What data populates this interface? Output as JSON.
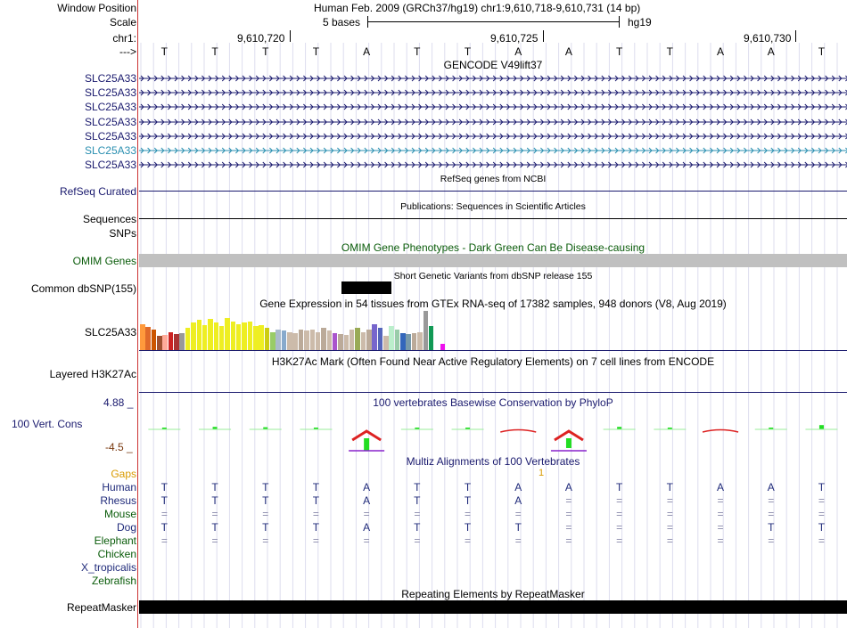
{
  "header": {
    "window_position_label": "Window Position",
    "window_position_value": "Human Feb. 2009 (GRCh37/hg19)   chr1:9,610,718-9,610,731 (14 bp)",
    "scale_label": "Scale",
    "scale_bases": "5 bases",
    "scale_assembly": "hg19",
    "chrom_label": "chr1:",
    "strand_label": "--->",
    "coord_ticks": [
      "9,610,720",
      "9,610,725",
      "9,610,730"
    ]
  },
  "bases": [
    "T",
    "T",
    "T",
    "T",
    "A",
    "T",
    "T",
    "A",
    "A",
    "T",
    "T",
    "A",
    "A",
    "T"
  ],
  "gencode": {
    "title": "GENCODE V49lift37",
    "transcripts": [
      "SLC25A33",
      "SLC25A33",
      "SLC25A33",
      "SLC25A33",
      "SLC25A33",
      "SLC25A33",
      "SLC25A33"
    ]
  },
  "refseq": {
    "label": "RefSeq Curated",
    "title": "RefSeq genes from NCBI"
  },
  "sequences": {
    "label": "Sequences",
    "title": "Publications: Sequences in Scientific Articles"
  },
  "snps": {
    "label": "SNPs"
  },
  "omim": {
    "title": "OMIM Gene Phenotypes - Dark Green Can Be Disease-causing",
    "label": "OMIM Genes"
  },
  "dbsnp": {
    "title": "Short Genetic Variants from dbSNP release 155",
    "label": "Common dbSNP(155)"
  },
  "gtex": {
    "title": "Gene Expression in 54 tissues from GTEx RNA-seq of 17382 samples, 948 donors (V8, Aug 2019)",
    "label": "SLC25A33",
    "bars": [
      {
        "h": 0.65,
        "c": "#ff9a3c"
      },
      {
        "h": 0.58,
        "c": "#e06a2a"
      },
      {
        "h": 0.5,
        "c": "#cc5500"
      },
      {
        "h": 0.35,
        "c": "#a05030"
      },
      {
        "h": 0.38,
        "c": "#ffaa99"
      },
      {
        "h": 0.45,
        "c": "#cc2222"
      },
      {
        "h": 0.4,
        "c": "#aa3333"
      },
      {
        "h": 0.42,
        "c": "#999999"
      },
      {
        "h": 0.55,
        "c": "#eeee22"
      },
      {
        "h": 0.7,
        "c": "#eeee22"
      },
      {
        "h": 0.75,
        "c": "#eeee22"
      },
      {
        "h": 0.62,
        "c": "#eeee22"
      },
      {
        "h": 0.78,
        "c": "#eeee22"
      },
      {
        "h": 0.68,
        "c": "#eeee22"
      },
      {
        "h": 0.6,
        "c": "#eeee22"
      },
      {
        "h": 0.8,
        "c": "#eeee22"
      },
      {
        "h": 0.72,
        "c": "#eeee22"
      },
      {
        "h": 0.65,
        "c": "#eeee22"
      },
      {
        "h": 0.7,
        "c": "#eeee22"
      },
      {
        "h": 0.72,
        "c": "#eeee22"
      },
      {
        "h": 0.6,
        "c": "#eeee22"
      },
      {
        "h": 0.62,
        "c": "#eeee22"
      },
      {
        "h": 0.55,
        "c": "#cccc11"
      },
      {
        "h": 0.45,
        "c": "#99cc66"
      },
      {
        "h": 0.52,
        "c": "#aabbcc"
      },
      {
        "h": 0.48,
        "c": "#88aacc"
      },
      {
        "h": 0.45,
        "c": "#ccbbaa"
      },
      {
        "h": 0.42,
        "c": "#ccbbaa"
      },
      {
        "h": 0.5,
        "c": "#bbaa99"
      },
      {
        "h": 0.48,
        "c": "#ccbbaa"
      },
      {
        "h": 0.5,
        "c": "#ccbbaa"
      },
      {
        "h": 0.45,
        "c": "#ccbbaa"
      },
      {
        "h": 0.55,
        "c": "#bbaa99"
      },
      {
        "h": 0.48,
        "c": "#ccbbaa"
      },
      {
        "h": 0.42,
        "c": "#aa55cc"
      },
      {
        "h": 0.4,
        "c": "#bbaa99"
      },
      {
        "h": 0.38,
        "c": "#ccbbaa"
      },
      {
        "h": 0.5,
        "c": "#ccbbaa"
      },
      {
        "h": 0.55,
        "c": "#99aa55"
      },
      {
        "h": 0.45,
        "c": "#ccbbaa"
      },
      {
        "h": 0.5,
        "c": "#bbaa99"
      },
      {
        "h": 0.65,
        "c": "#7766cc"
      },
      {
        "h": 0.55,
        "c": "#5566bb"
      },
      {
        "h": 0.35,
        "c": "#ccbbaa"
      },
      {
        "h": 0.6,
        "c": "#bbeecc"
      },
      {
        "h": 0.52,
        "c": "#99ccaa"
      },
      {
        "h": 0.42,
        "c": "#3366bb"
      },
      {
        "h": 0.4,
        "c": "#7799aa"
      },
      {
        "h": 0.42,
        "c": "#bbaa99"
      },
      {
        "h": 0.45,
        "c": "#ccbbaa"
      },
      {
        "h": 0.98,
        "c": "#999999"
      },
      {
        "h": 0.6,
        "c": "#119955"
      },
      {
        "h": 0.45,
        "c": "#ffffff"
      },
      {
        "h": 0.15,
        "c": "#ee11ee"
      }
    ]
  },
  "h3k27ac": {
    "title": "H3K27Ac Mark (Often Found Near Active Regulatory Elements) on 7 cell lines from ENCODE",
    "label": "Layered H3K27Ac"
  },
  "phylop": {
    "title": "100 vertebrates Basewise Conservation by PhyloP",
    "label": "100 Vert. Cons",
    "max_label": "4.88 _",
    "min_label": "-4.5 _",
    "scores": [
      0.2,
      0.35,
      0.3,
      0.2,
      -2.8,
      0,
      0,
      -0.3,
      -2.2,
      0.35,
      0.1,
      -0.8,
      0,
      0.6
    ]
  },
  "multiz": {
    "title": "Multiz Alignments of 100 Vertebrates",
    "gaps_label": "Gaps",
    "gap_marker": "1",
    "species": [
      {
        "name": "Human",
        "color": "#1f2a7a",
        "row": [
          "T",
          "T",
          "T",
          "T",
          "A",
          "T",
          "T",
          "A",
          "A",
          "T",
          "T",
          "A",
          "A",
          "T"
        ]
      },
      {
        "name": "Rhesus",
        "color": "#1f2a7a",
        "row": [
          "T",
          "T",
          "T",
          "T",
          "A",
          "T",
          "T",
          "A",
          "=",
          "=",
          "=",
          "=",
          "=",
          "="
        ]
      },
      {
        "name": "Mouse",
        "color": "#0a5c0a",
        "row": [
          "=",
          "=",
          "=",
          "=",
          "=",
          "=",
          "=",
          "=",
          "=",
          "=",
          "=",
          "=",
          "=",
          "="
        ]
      },
      {
        "name": "Dog",
        "color": "#1f2a7a",
        "row": [
          "T",
          "T",
          "T",
          "T",
          "A",
          "T",
          "T",
          "T",
          "=",
          "=",
          "=",
          "=",
          "T",
          "T"
        ]
      },
      {
        "name": "Elephant",
        "color": "#0a5c0a",
        "row": [
          "=",
          "=",
          "=",
          "=",
          "=",
          "=",
          "=",
          "=",
          "=",
          "=",
          "=",
          "=",
          "=",
          "="
        ]
      },
      {
        "name": "Chicken",
        "color": "#0a5c0a",
        "row": []
      },
      {
        "name": "X_tropicalis",
        "color": "#1f2a7a",
        "row": []
      },
      {
        "name": "Zebrafish",
        "color": "#0a5c0a",
        "row": []
      }
    ]
  },
  "repeatmasker": {
    "title": "Repeating Elements by RepeatMasker",
    "label": "RepeatMasker"
  },
  "colors": {
    "track_navy": "#1a1a6e",
    "omim_gray": "#c0c0c0",
    "gencode_teal": "#2a8fb0",
    "grid": "#ddddee",
    "divider": "#cc3333"
  }
}
